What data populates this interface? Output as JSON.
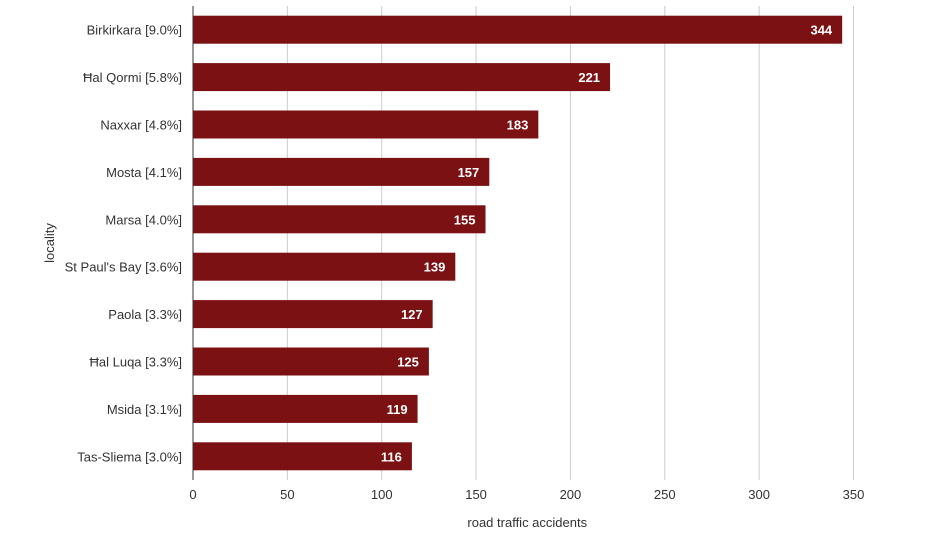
{
  "chart_data": {
    "type": "bar",
    "orientation": "horizontal",
    "categories": [
      "Birkirkara [9.0%]",
      "Ħal Qormi [5.8%]",
      "Naxxar [4.8%]",
      "Mosta [4.1%]",
      "Marsa [4.0%]",
      "St Paul's Bay [3.6%]",
      "Paola [3.3%]",
      "Ħal Luqa [3.3%]",
      "Msida [3.1%]",
      "Tas-Sliema [3.0%]"
    ],
    "values": [
      344,
      221,
      183,
      157,
      155,
      139,
      127,
      125,
      119,
      116
    ],
    "xlabel": "road traffic accidents",
    "ylabel": "locality",
    "xlim": [
      0,
      350
    ],
    "xticks": [
      0,
      50,
      100,
      150,
      200,
      250,
      300,
      350
    ],
    "grid": true,
    "legend": "none",
    "bar_color": "#7b1113",
    "grid_color": "#cccccc",
    "label_color": "#ffffff"
  }
}
